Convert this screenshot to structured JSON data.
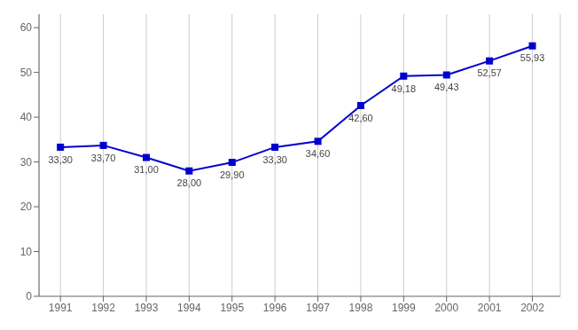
{
  "chart_data": {
    "type": "line",
    "x": [
      1991,
      1992,
      1993,
      1994,
      1995,
      1996,
      1997,
      1998,
      1999,
      2000,
      2001,
      2002
    ],
    "values": [
      33.3,
      33.7,
      31.0,
      28.0,
      29.9,
      33.3,
      34.6,
      42.6,
      49.18,
      49.43,
      52.57,
      55.93
    ],
    "value_labels": [
      "33,30",
      "33,70",
      "31,00",
      "28,00",
      "29,90",
      "33,30",
      "34,60",
      "42,60",
      "49,18",
      "49,43",
      "52,57",
      "55,93"
    ],
    "data_labels": true,
    "color": "#0000cc",
    "marker": "square",
    "xlim": [
      1990.5,
      2002.65
    ],
    "xticks": [
      1991,
      1992,
      1993,
      1994,
      1995,
      1996,
      1997,
      1998,
      1999,
      2000,
      2001,
      2002
    ],
    "ylim": [
      0,
      63
    ],
    "yticks": [
      0,
      10,
      20,
      30,
      40,
      50,
      60
    ],
    "grid": "x"
  }
}
